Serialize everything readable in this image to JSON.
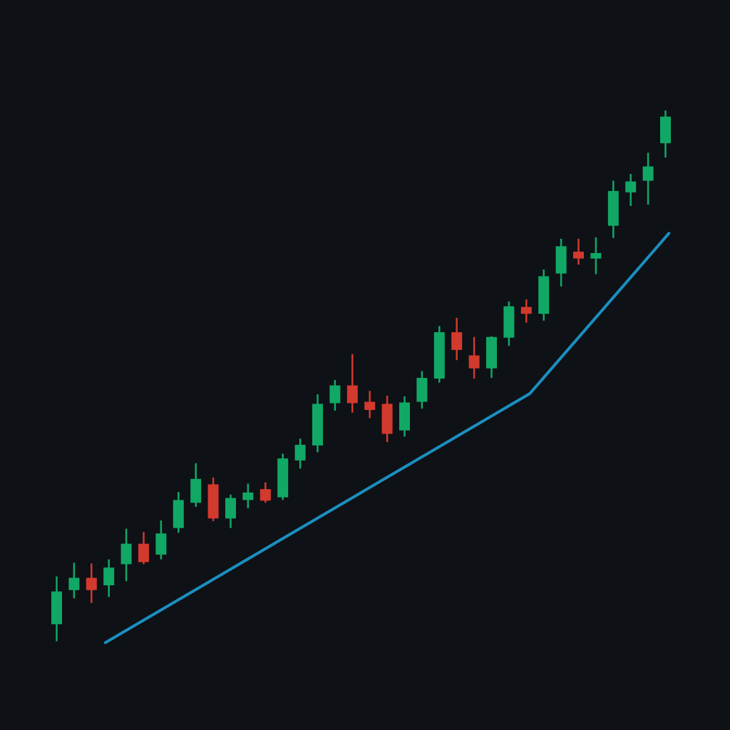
{
  "chart_data": {
    "type": "candlestick",
    "title": "",
    "xlabel": "",
    "ylabel": "",
    "axes_visible": false,
    "grid": false,
    "legend": "none",
    "ylim": [
      0,
      100
    ],
    "colors": {
      "background": "#0e1116",
      "up": "#11a866",
      "down": "#d23a2d",
      "trendline": "#1b8fbf"
    },
    "candles": [
      {
        "index": 1,
        "open": 13.0,
        "high": 20.0,
        "low": 10.5,
        "close": 17.8
      },
      {
        "index": 2,
        "open": 18.0,
        "high": 22.0,
        "low": 16.8,
        "close": 19.8
      },
      {
        "index": 3,
        "open": 19.8,
        "high": 21.9,
        "low": 16.1,
        "close": 18.0
      },
      {
        "index": 4,
        "open": 18.7,
        "high": 22.5,
        "low": 17.0,
        "close": 21.3
      },
      {
        "index": 5,
        "open": 21.8,
        "high": 27.0,
        "low": 19.3,
        "close": 24.8
      },
      {
        "index": 6,
        "open": 24.8,
        "high": 26.5,
        "low": 21.8,
        "close": 22.1
      },
      {
        "index": 7,
        "open": 23.2,
        "high": 28.2,
        "low": 22.5,
        "close": 26.3
      },
      {
        "index": 8,
        "open": 27.1,
        "high": 32.4,
        "low": 26.4,
        "close": 31.2
      },
      {
        "index": 9,
        "open": 30.8,
        "high": 36.6,
        "low": 30.2,
        "close": 34.3
      },
      {
        "index": 10,
        "open": 33.5,
        "high": 34.5,
        "low": 28.1,
        "close": 28.5
      },
      {
        "index": 11,
        "open": 28.5,
        "high": 32.0,
        "low": 27.1,
        "close": 31.5
      },
      {
        "index": 12,
        "open": 31.2,
        "high": 33.6,
        "low": 30.0,
        "close": 32.3
      },
      {
        "index": 13,
        "open": 32.8,
        "high": 33.8,
        "low": 30.8,
        "close": 31.1
      },
      {
        "index": 14,
        "open": 31.6,
        "high": 38.0,
        "low": 31.2,
        "close": 37.3
      },
      {
        "index": 15,
        "open": 37.0,
        "high": 40.2,
        "low": 35.8,
        "close": 39.3
      },
      {
        "index": 16,
        "open": 39.2,
        "high": 46.7,
        "low": 38.2,
        "close": 45.3
      },
      {
        "index": 17,
        "open": 45.4,
        "high": 48.8,
        "low": 44.3,
        "close": 48.0
      },
      {
        "index": 18,
        "open": 48.0,
        "high": 52.6,
        "low": 44.0,
        "close": 45.4
      },
      {
        "index": 19,
        "open": 45.6,
        "high": 47.2,
        "low": 43.2,
        "close": 44.4
      },
      {
        "index": 20,
        "open": 45.3,
        "high": 46.5,
        "low": 39.7,
        "close": 40.9
      },
      {
        "index": 21,
        "open": 41.4,
        "high": 46.4,
        "low": 40.5,
        "close": 45.5
      },
      {
        "index": 22,
        "open": 45.6,
        "high": 50.1,
        "low": 44.6,
        "close": 49.1
      },
      {
        "index": 23,
        "open": 49.0,
        "high": 56.7,
        "low": 48.4,
        "close": 55.8
      },
      {
        "index": 24,
        "open": 55.8,
        "high": 57.9,
        "low": 51.7,
        "close": 53.2
      },
      {
        "index": 25,
        "open": 52.4,
        "high": 55.1,
        "low": 49.0,
        "close": 50.5
      },
      {
        "index": 26,
        "open": 50.5,
        "high": 55.2,
        "low": 49.1,
        "close": 55.1
      },
      {
        "index": 27,
        "open": 55.0,
        "high": 60.3,
        "low": 53.8,
        "close": 59.6
      },
      {
        "index": 28,
        "open": 59.5,
        "high": 60.6,
        "low": 57.2,
        "close": 58.5
      },
      {
        "index": 29,
        "open": 58.5,
        "high": 65.0,
        "low": 57.5,
        "close": 64.0
      },
      {
        "index": 30,
        "open": 64.4,
        "high": 69.5,
        "low": 62.5,
        "close": 68.4
      },
      {
        "index": 31,
        "open": 67.6,
        "high": 69.5,
        "low": 65.7,
        "close": 66.6
      },
      {
        "index": 32,
        "open": 66.6,
        "high": 69.7,
        "low": 64.3,
        "close": 67.4
      },
      {
        "index": 33,
        "open": 71.4,
        "high": 78.0,
        "low": 69.6,
        "close": 76.5
      },
      {
        "index": 34,
        "open": 76.3,
        "high": 79.0,
        "low": 74.3,
        "close": 77.9
      },
      {
        "index": 35,
        "open": 78.0,
        "high": 82.1,
        "low": 74.5,
        "close": 80.1
      },
      {
        "index": 36,
        "open": 83.5,
        "high": 88.3,
        "low": 81.4,
        "close": 87.4
      }
    ],
    "trendline": [
      {
        "index": 3.8,
        "value": 10.3
      },
      {
        "index": 28.2,
        "value": 46.8
      },
      {
        "index": 36.2,
        "value": 70.3
      }
    ]
  }
}
